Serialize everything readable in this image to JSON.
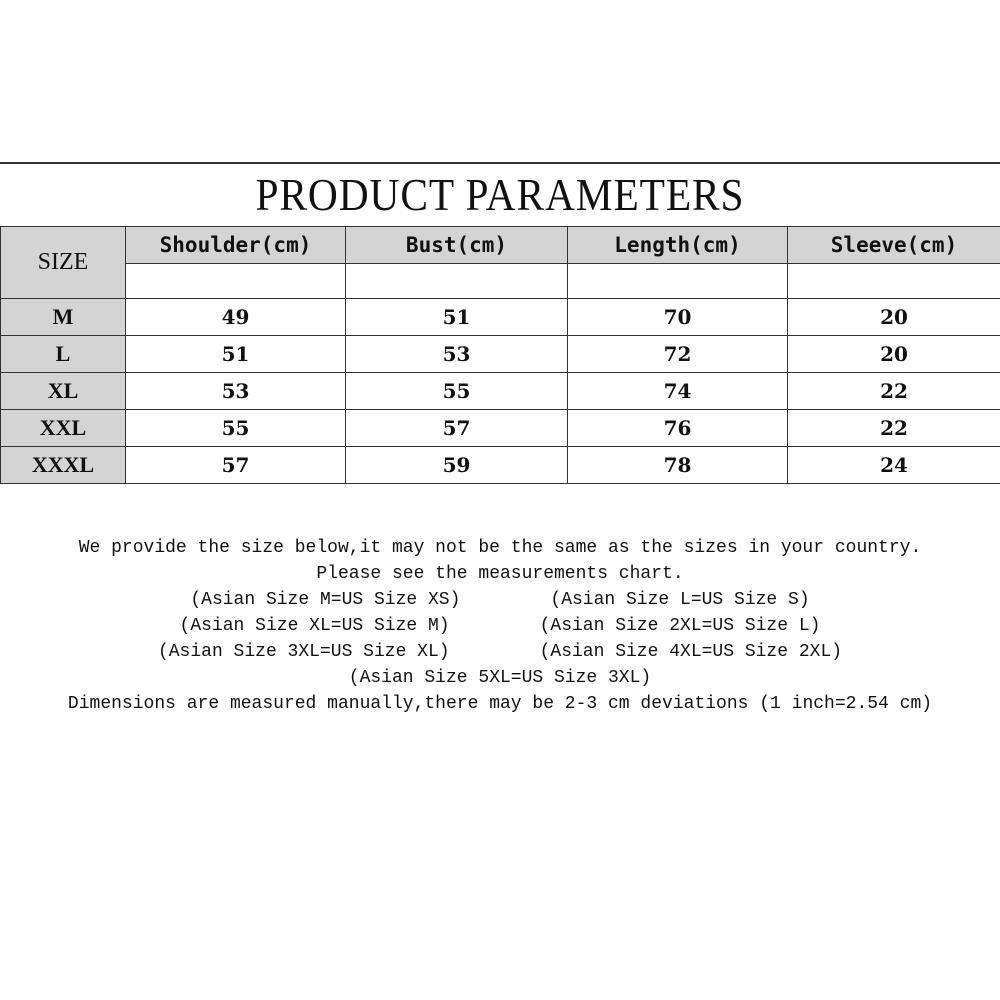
{
  "title": "PRODUCT PARAMETERS",
  "table": {
    "size_header": "SIZE",
    "headers": [
      "Shoulder(cm)",
      "Bust(cm)",
      "Length(cm)",
      "Sleeve(cm)"
    ],
    "rows": [
      {
        "size": "M",
        "values": [
          "49",
          "51",
          "70",
          "20"
        ]
      },
      {
        "size": "L",
        "values": [
          "51",
          "53",
          "72",
          "20"
        ]
      },
      {
        "size": "XL",
        "values": [
          "53",
          "55",
          "74",
          "22"
        ]
      },
      {
        "size": "XXL",
        "values": [
          "55",
          "57",
          "76",
          "22"
        ]
      },
      {
        "size": "XXXL",
        "values": [
          "57",
          "59",
          "78",
          "24"
        ]
      }
    ]
  },
  "notes": {
    "line1": "We provide the size below,it may not be the same as the sizes in your country.",
    "line2": "Please see the measurements chart.",
    "pairs": [
      [
        "(Asian Size M=US Size XS)",
        "(Asian Size L=US Size S)"
      ],
      [
        "(Asian Size XL=US Size M)",
        "(Asian Size 2XL=US Size L)"
      ],
      [
        "(Asian Size 3XL=US Size XL)",
        "(Asian Size 4XL=US Size 2XL)"
      ]
    ],
    "single": "(Asian Size 5XL=US Size 3XL)",
    "footer": "Dimensions are measured manually,there may be 2-3 cm deviations (1 inch=2.54 cm)"
  }
}
